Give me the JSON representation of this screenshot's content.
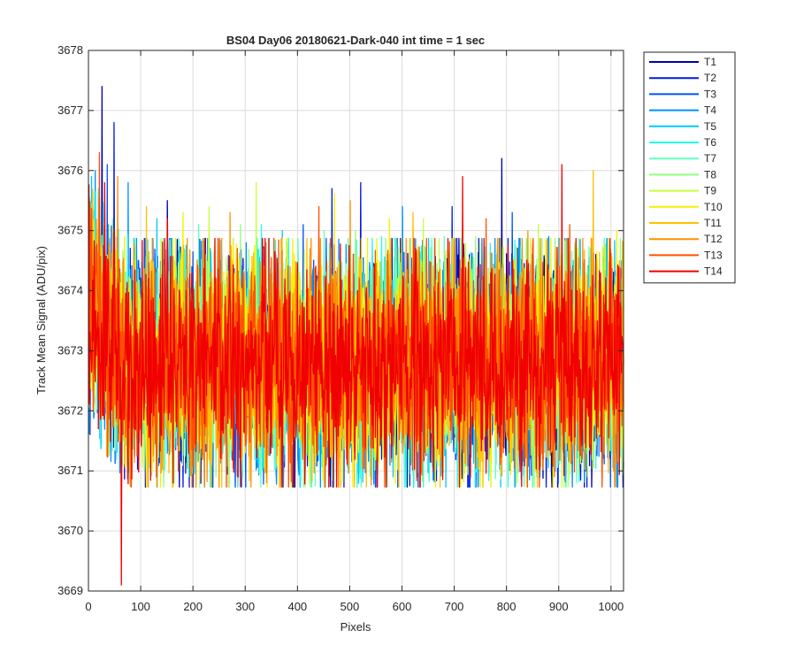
{
  "chart_data": {
    "type": "line",
    "title": "BS04 Day06 20180621-Dark-040 int time = 1 sec",
    "xlabel": "Pixels",
    "ylabel": "Track Mean Signal (ADU/pix)",
    "xlim": [
      0,
      1024
    ],
    "ylim": [
      3669,
      3678
    ],
    "xticks": [
      "0",
      "100",
      "200",
      "300",
      "400",
      "500",
      "600",
      "700",
      "800",
      "900",
      "1000"
    ],
    "yticks": [
      "3669",
      "3670",
      "3671",
      "3672",
      "3673",
      "3674",
      "3675",
      "3676",
      "3677",
      "3678"
    ],
    "grid": true,
    "legend_position": "outside-top-right",
    "n_points": 1024,
    "mean_level": 3672.8,
    "noise_sigma": 0.9,
    "series": [
      {
        "name": "T1",
        "color": "#0000a8",
        "peaks": [
          [
            25,
            3677.4
          ],
          [
            790,
            3676.2
          ],
          [
            150,
            3675.5
          ],
          [
            850,
            3674.6
          ]
        ]
      },
      {
        "name": "T2",
        "color": "#0018e0",
        "peaks": [
          [
            48,
            3676.8
          ],
          [
            520,
            3675.8
          ],
          [
            465,
            3675.7
          ],
          [
            695,
            3675.4
          ]
        ]
      },
      {
        "name": "T3",
        "color": "#0050ff",
        "peaks": [
          [
            35,
            3676.1
          ],
          [
            810,
            3675.3
          ],
          [
            410,
            3675.1
          ],
          [
            260,
            3673.6
          ]
        ]
      },
      {
        "name": "T4",
        "color": "#0090ff",
        "peaks": [
          [
            12,
            3676.0
          ],
          [
            75,
            3675.8
          ],
          [
            600,
            3675.4
          ],
          [
            880,
            3674.9
          ]
        ]
      },
      {
        "name": "T5",
        "color": "#00c8ff",
        "peaks": [
          [
            5,
            3675.9
          ],
          [
            130,
            3675.2
          ],
          [
            370,
            3675.0
          ],
          [
            990,
            3674.8
          ]
        ]
      },
      {
        "name": "T6",
        "color": "#20ffe6",
        "peaks": [
          [
            18,
            3675.7
          ],
          [
            330,
            3675.1
          ],
          [
            560,
            3674.9
          ],
          [
            960,
            3674.7
          ]
        ]
      },
      {
        "name": "T7",
        "color": "#60ffc0",
        "peaks": [
          [
            210,
            3675.1
          ],
          [
            450,
            3675.0
          ],
          [
            680,
            3674.9
          ],
          [
            780,
            3674.6
          ]
        ]
      },
      {
        "name": "T8",
        "color": "#90ff80",
        "peaks": [
          [
            290,
            3675.1
          ],
          [
            510,
            3675.0
          ],
          [
            740,
            3674.9
          ],
          [
            930,
            3674.8
          ]
        ]
      },
      {
        "name": "T9",
        "color": "#c8ff40",
        "peaks": [
          [
            320,
            3675.8
          ],
          [
            230,
            3675.4
          ],
          [
            640,
            3675.2
          ],
          [
            860,
            3675.1
          ]
        ]
      },
      {
        "name": "T10",
        "color": "#f8f000",
        "peaks": [
          [
            470,
            3675.6
          ],
          [
            180,
            3675.3
          ],
          [
            575,
            3675.2
          ],
          [
            1010,
            3675.0
          ]
        ]
      },
      {
        "name": "T11",
        "color": "#ffc000",
        "peaks": [
          [
            965,
            3676.0
          ],
          [
            110,
            3675.4
          ],
          [
            620,
            3675.3
          ],
          [
            715,
            3675.1
          ]
        ]
      },
      {
        "name": "T12",
        "color": "#ff9000",
        "peaks": [
          [
            55,
            3675.9
          ],
          [
            270,
            3675.3
          ],
          [
            500,
            3675.5
          ],
          [
            840,
            3675.0
          ]
        ]
      },
      {
        "name": "T13",
        "color": "#ff5000",
        "peaks": [
          [
            20,
            3676.3
          ],
          [
            440,
            3675.4
          ],
          [
            760,
            3675.2
          ],
          [
            920,
            3675.1
          ]
        ]
      },
      {
        "name": "T14",
        "color": "#f00000",
        "peaks": [
          [
            905,
            3676.1
          ],
          [
            715,
            3675.9
          ],
          [
            30,
            3675.8
          ],
          [
            150,
            3675.2
          ]
        ],
        "dips": [
          [
            62,
            3669.1
          ]
        ]
      }
    ]
  }
}
